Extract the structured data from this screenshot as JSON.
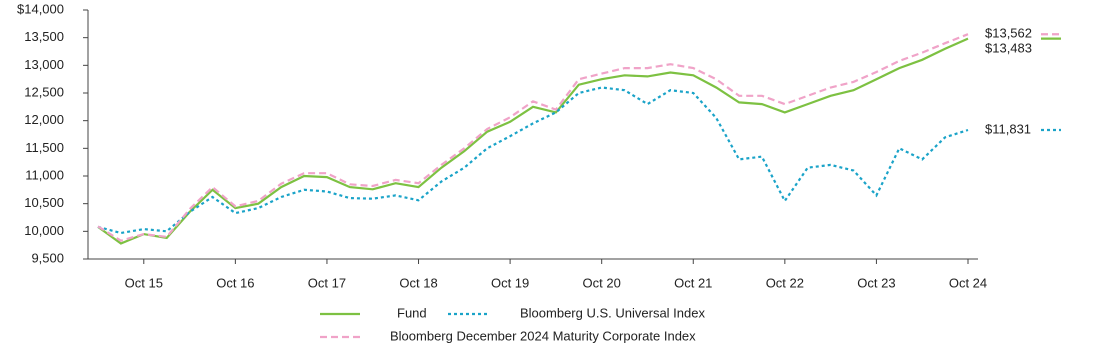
{
  "chart_data": {
    "type": "line",
    "categories": [
      null,
      null,
      "Oct 15",
      null,
      null,
      null,
      "Oct 16",
      null,
      null,
      null,
      "Oct 17",
      null,
      null,
      null,
      "Oct 18",
      null,
      null,
      null,
      "Oct 19",
      null,
      null,
      null,
      "Oct 20",
      null,
      null,
      null,
      "Oct 21",
      null,
      null,
      null,
      "Oct 22",
      null,
      null,
      null,
      "Oct 23",
      null,
      null,
      null,
      "Oct 24"
    ],
    "series": [
      {
        "name": "Fund",
        "color": "#7dc142",
        "dash": "solid",
        "values": [
          10080,
          9780,
          9950,
          9880,
          10350,
          10750,
          10420,
          10500,
          10800,
          11000,
          10980,
          10800,
          10760,
          10870,
          10800,
          11150,
          11450,
          11800,
          11980,
          12250,
          12150,
          12650,
          12750,
          12820,
          12800,
          12870,
          12820,
          12600,
          12330,
          12300,
          12150,
          12300,
          12450,
          12550,
          12750,
          12950,
          13100,
          13300,
          13483
        ],
        "value_labels": [
          null,
          null,
          null,
          null,
          null,
          null,
          null,
          null,
          null,
          null,
          null,
          null,
          null,
          null,
          null,
          null,
          null,
          null,
          null,
          null,
          null,
          null,
          null,
          null,
          null,
          null,
          null,
          null,
          null,
          null,
          null,
          null,
          null,
          null,
          null,
          null,
          null,
          null,
          "$13,483"
        ]
      },
      {
        "name": "Bloomberg U.S. Universal Index",
        "color": "#1aa3c8",
        "dash": "dotted",
        "values": [
          10080,
          9970,
          10040,
          10000,
          10350,
          10620,
          10330,
          10420,
          10620,
          10750,
          10720,
          10600,
          10590,
          10650,
          10560,
          10900,
          11150,
          11500,
          11720,
          11950,
          12150,
          12500,
          12600,
          12550,
          12300,
          12550,
          12500,
          12050,
          11300,
          11350,
          10550,
          11150,
          11200,
          11100,
          10650,
          11500,
          11300,
          11700,
          11831
        ],
        "value_labels": [
          null,
          null,
          null,
          null,
          null,
          null,
          null,
          null,
          null,
          null,
          null,
          null,
          null,
          null,
          null,
          null,
          null,
          null,
          null,
          null,
          null,
          null,
          null,
          null,
          null,
          null,
          null,
          null,
          null,
          null,
          null,
          null,
          null,
          null,
          null,
          null,
          null,
          null,
          "$11,831"
        ]
      },
      {
        "name": "Bloomberg December 2024 Maturity Corporate Index",
        "color": "#f0a3c8",
        "dash": "dashed",
        "values": [
          10090,
          9830,
          9950,
          9900,
          10400,
          10800,
          10450,
          10550,
          10860,
          11050,
          11050,
          10850,
          10820,
          10930,
          10870,
          11200,
          11500,
          11850,
          12060,
          12350,
          12200,
          12750,
          12850,
          12950,
          12950,
          13020,
          12950,
          12750,
          12450,
          12450,
          12300,
          12450,
          12600,
          12700,
          12880,
          13080,
          13230,
          13400,
          13562
        ],
        "value_labels": [
          null,
          null,
          null,
          null,
          null,
          null,
          null,
          null,
          null,
          null,
          null,
          null,
          null,
          null,
          null,
          null,
          null,
          null,
          null,
          null,
          null,
          null,
          null,
          null,
          null,
          null,
          null,
          null,
          null,
          null,
          null,
          null,
          null,
          null,
          null,
          null,
          null,
          null,
          "$13,562"
        ]
      }
    ],
    "ylim": [
      9500,
      14000
    ],
    "yticks": [
      {
        "value": 9500,
        "label": "9,500"
      },
      {
        "value": 10000,
        "label": "10,000"
      },
      {
        "value": 10500,
        "label": "10,500"
      },
      {
        "value": 11000,
        "label": "11,000"
      },
      {
        "value": 11500,
        "label": "11,500"
      },
      {
        "value": 12000,
        "label": "12,000"
      },
      {
        "value": 12500,
        "label": "12,500"
      },
      {
        "value": 13000,
        "label": "13,000"
      },
      {
        "value": 13500,
        "label": "13,500"
      },
      {
        "value": 14000,
        "label": "$14,000"
      }
    ],
    "grid": false
  }
}
